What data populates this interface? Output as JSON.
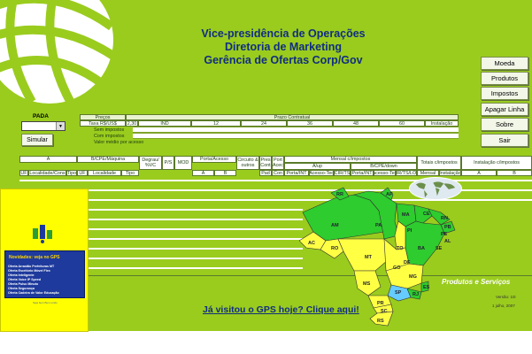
{
  "header": {
    "line1": "Vice-presidência de Operações",
    "line2": "Diretoria de Marketing",
    "line3": "Gerência de Ofertas Corp/Gov"
  },
  "buttons": [
    "Moeda",
    "Produtos",
    "Impostos",
    "Apagar Linha",
    "Sobre",
    "Sair"
  ],
  "pada": {
    "label": "PADA",
    "value": ""
  },
  "simular_label": "Simular",
  "precos": {
    "title": "Preços",
    "taxa_label": "Taxa R$/US$",
    "taxa_value": "2,30",
    "prazo_title": "Prazo Contratual",
    "ind": "IND",
    "months": [
      "12",
      "24",
      "36",
      "48",
      "60"
    ],
    "instalacao": "Instalação",
    "rows": [
      "Sem impostos",
      "Com impostos",
      "Valor médio por acesso"
    ]
  },
  "table": {
    "group_headers": [
      "A",
      "B/CPE/Máquina",
      "Degrau/ %VC",
      "P/S",
      "MOD",
      "Porta/Acesso",
      "Circuito & outros",
      "Pres Cont",
      "Port Acec",
      "Mensal c/impostos",
      "Totais c/impostos",
      "Instalação c/impostos"
    ],
    "sub_headers": [
      "UF",
      "Localidade/Cons",
      "Tipo",
      "UF",
      "Localidade",
      "Tipo",
      "A",
      "B",
      "Pad",
      "Con",
      "A/up",
      "B/CPE/down",
      "Mensal",
      "Instalação",
      "A",
      "B"
    ],
    "leaf_headers": [
      "Porta/INT",
      "Acesso-Tec",
      "CIR/TS",
      "Porta/INT",
      "Acesso-Tec",
      "CIR/TS/LOC"
    ]
  },
  "map": {
    "states": [
      "AM",
      "PA",
      "MA",
      "CE",
      "RN",
      "PB",
      "PE",
      "AL",
      "SE",
      "BA",
      "PI",
      "TO",
      "MT",
      "RO",
      "AC",
      "GO",
      "DF",
      "MG",
      "ES",
      "RJ",
      "SP",
      "MS",
      "PR",
      "SC",
      "RS",
      "AP",
      "RR"
    ]
  },
  "produtos_servicos": "Produtos e Serviços",
  "gps_link": "Já visitou o GPS hoje? Clique aqui!",
  "versao": "Versão: 10i",
  "data_versao": "1 julho, 2007",
  "popup": {
    "title": "Novidades: veja no GPS",
    "items": [
      "Oferta Arrastão Prefeituras MT",
      "Oferta Escritório Móvel Flex",
      "Oferta Inteligente",
      "Oferta Voice IP Speed",
      "Oferta Pulso Minuto",
      "Oferta Segurança",
      "Oferta Cadeira de Valor Educação"
    ],
    "subtitle": "Seja bem Bem-vindo",
    "colors": {
      "background": "#ffff00",
      "box": "#1e3a9c",
      "title": "#ffd600"
    }
  },
  "colors": {
    "background": "#9acc1e",
    "header_text": "#102e80",
    "brazil_north": "#2ecc2e",
    "brazil_south": "#ffff44"
  }
}
